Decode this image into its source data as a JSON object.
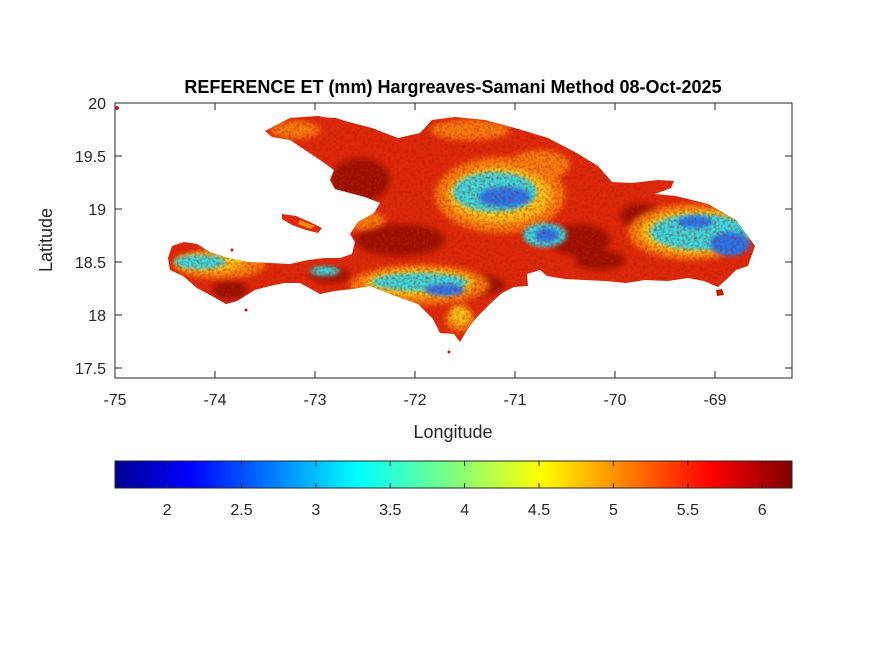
{
  "title": "REFERENCE ET (mm) Hargreaves-Samani Method  08-Oct-2025",
  "xlabel": "Longitude",
  "ylabel": "Latitude",
  "x_ticks": [
    "-75",
    "-74",
    "-73",
    "-72",
    "-71",
    "-70",
    "-69"
  ],
  "y_ticks": [
    "20",
    "19.5",
    "19",
    "18.5",
    "18",
    "17.5"
  ],
  "colorbar": {
    "ticks": [
      "2",
      "2.5",
      "3",
      "3.5",
      "4",
      "4.5",
      "5",
      "5.5",
      "6"
    ],
    "range": [
      1.65,
      6.2
    ],
    "colormap": "jet"
  },
  "colors": {
    "land_base": "#e0280c",
    "dark_red": "#9a0d04",
    "orange": "#ff8a10",
    "yellow": "#ffd21a",
    "cyan": "#33dde8",
    "blue": "#1a78ff"
  }
}
